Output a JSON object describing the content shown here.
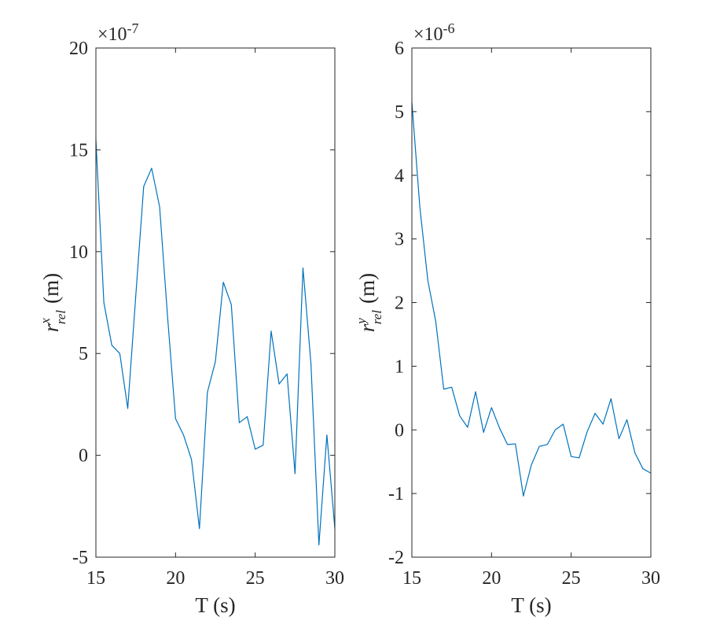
{
  "chart_data": [
    {
      "type": "line",
      "xlabel": "T (s)",
      "ylabel": {
        "base": "r",
        "superscript": "x",
        "subscript": "rel",
        "unit": "(m)"
      },
      "exponent_label": {
        "prefix": "×10",
        "power": "-7"
      },
      "xlim": [
        15,
        30
      ],
      "ylim": [
        -5,
        20
      ],
      "xticks": [
        15,
        20,
        25,
        30
      ],
      "xtick_labels": [
        "15",
        "20",
        "25",
        "30"
      ],
      "yticks": [
        -5,
        0,
        5,
        10,
        15,
        20
      ],
      "ytick_labels": [
        "-5",
        "0",
        "5",
        "10",
        "15",
        "20"
      ],
      "grid": false,
      "series": [
        {
          "color": "#0072BD",
          "x": [
            15,
            15.5,
            16,
            16.5,
            17,
            17.5,
            18,
            18.5,
            19,
            19.5,
            20,
            20.5,
            21,
            21.5,
            22,
            22.5,
            23,
            23.5,
            24,
            24.5,
            25,
            25.5,
            26,
            26.5,
            27,
            27.5,
            28,
            28.5,
            29,
            29.5,
            30
          ],
          "y": [
            15.5,
            7.5,
            5.4,
            5.0,
            2.3,
            7.8,
            13.2,
            14.1,
            12.2,
            6.8,
            1.8,
            1.0,
            -0.2,
            -3.6,
            3.1,
            4.6,
            8.5,
            7.4,
            1.6,
            1.9,
            0.3,
            0.5,
            6.1,
            3.5,
            4.0,
            -0.9,
            9.2,
            4.5,
            -4.4,
            1.0,
            -3.6
          ]
        }
      ]
    },
    {
      "type": "line",
      "xlabel": "T (s)",
      "ylabel": {
        "base": "r",
        "superscript": "y",
        "subscript": "rel",
        "unit": "(m)"
      },
      "exponent_label": {
        "prefix": "×10",
        "power": "-6"
      },
      "xlim": [
        15,
        30
      ],
      "ylim": [
        -2,
        6
      ],
      "xticks": [
        15,
        20,
        25,
        30
      ],
      "xtick_labels": [
        "15",
        "20",
        "25",
        "30"
      ],
      "yticks": [
        -2,
        -1,
        0,
        1,
        2,
        3,
        4,
        5,
        6
      ],
      "ytick_labels": [
        "-2",
        "-1",
        "0",
        "1",
        "2",
        "3",
        "4",
        "5",
        "6"
      ],
      "grid": false,
      "series": [
        {
          "color": "#0072BD",
          "x": [
            15,
            15.5,
            16,
            16.5,
            17,
            17.5,
            18,
            18.5,
            19,
            19.5,
            20,
            20.5,
            21,
            21.5,
            22,
            22.5,
            23,
            23.5,
            24,
            24.5,
            25,
            25.5,
            26,
            26.5,
            27,
            27.5,
            28,
            28.5,
            29,
            29.5,
            30
          ],
          "y": [
            5.15,
            3.5,
            2.35,
            1.7,
            0.64,
            0.67,
            0.22,
            0.04,
            0.6,
            -0.04,
            0.35,
            0.03,
            -0.23,
            -0.22,
            -1.04,
            -0.55,
            -0.26,
            -0.23,
            0.0,
            0.09,
            -0.42,
            -0.44,
            -0.03,
            0.26,
            0.09,
            0.49,
            -0.14,
            0.16,
            -0.36,
            -0.61,
            -0.68
          ]
        }
      ]
    }
  ]
}
